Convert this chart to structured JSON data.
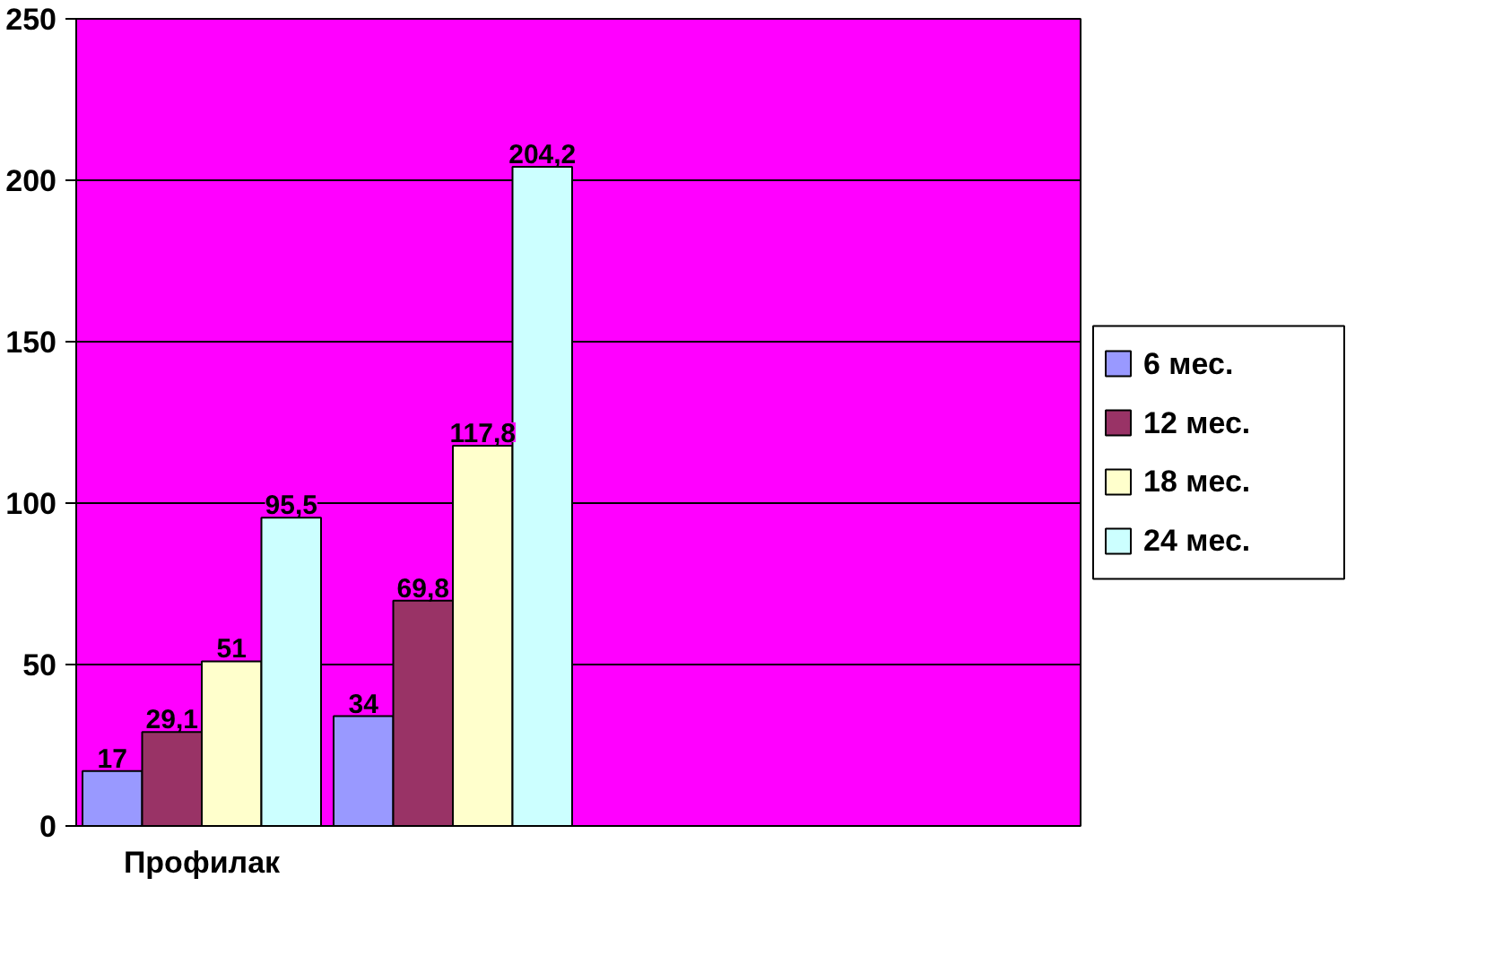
{
  "chart_data": {
    "type": "bar",
    "categories": [
      "Профилак",
      null,
      null,
      null
    ],
    "series": [
      {
        "name": "6 мес.",
        "color": "#9999ff",
        "values": [
          17,
          34,
          null,
          null
        ],
        "value_labels": [
          "17",
          "34",
          null,
          null
        ]
      },
      {
        "name": "12 мес.",
        "color": "#993366",
        "values": [
          29.1,
          69.8,
          null,
          null
        ],
        "value_labels": [
          "29,1",
          "69,8",
          null,
          null
        ]
      },
      {
        "name": "18 мес.",
        "color": "#ffffcc",
        "values": [
          51,
          117.8,
          null,
          null
        ],
        "value_labels": [
          "51",
          "117,8",
          null,
          null
        ]
      },
      {
        "name": "24 мес.",
        "color": "#ccffff",
        "values": [
          95.5,
          204.2,
          null,
          null
        ],
        "value_labels": [
          "95,5",
          "204,2",
          null,
          null
        ]
      }
    ],
    "ylim": [
      0,
      250
    ],
    "yticks": [
      0,
      50,
      100,
      150,
      200,
      250
    ],
    "grid": "y",
    "legend": "right"
  }
}
